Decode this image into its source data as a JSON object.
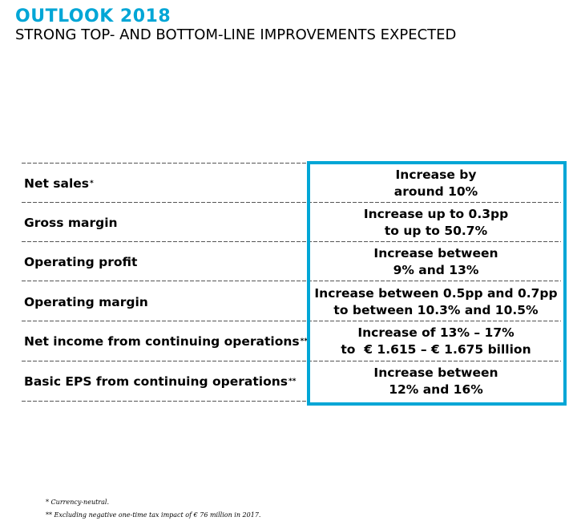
{
  "title": "OUTLOOK 2018",
  "subtitle": "STRONG TOP- AND BOTTOM-LINE IMPROVEMENTS EXPECTED",
  "accent_color": "#00a6d6",
  "rows": [
    {
      "label": "Net sales",
      "marker": "*",
      "value_line1": "Increase by",
      "value_line2": "around 10%"
    },
    {
      "label": "Gross margin",
      "marker": "",
      "value_line1": "Increase up to 0.3pp",
      "value_line2": "to up to 50.7%"
    },
    {
      "label": "Operating profit",
      "marker": "",
      "value_line1": "Increase between",
      "value_line2": "9% and 13%"
    },
    {
      "label": "Operating margin",
      "marker": "",
      "value_line1": "Increase between 0.5pp and 0.7pp",
      "value_line2": "to between 10.3% and 10.5%"
    },
    {
      "label": "Net income from continuing operations",
      "marker": "**",
      "value_line1": "Increase of 13% – 17%",
      "value_line2": "to  € 1.615 – € 1.675 billion"
    },
    {
      "label": "Basic EPS from continuing operations",
      "marker": "**",
      "value_line1": "Increase between",
      "value_line2": "12% and 16%"
    }
  ],
  "footnotes": [
    "* Currency-neutral.",
    "** Excluding negative one-time tax impact of € 76 million in 2017."
  ]
}
